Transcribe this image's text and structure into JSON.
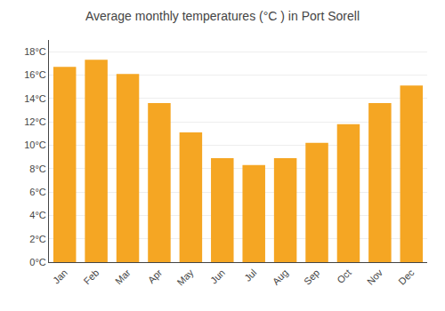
{
  "chart_data": {
    "type": "bar",
    "title": "Average monthly temperatures (°C ) in Port Sorell",
    "categories": [
      "Jan",
      "Feb",
      "Mar",
      "Apr",
      "May",
      "Jun",
      "Jul",
      "Aug",
      "Sep",
      "Oct",
      "Nov",
      "Dec"
    ],
    "values": [
      16.7,
      17.3,
      16.1,
      13.6,
      11.1,
      8.9,
      8.3,
      8.9,
      10.2,
      11.8,
      13.6,
      15.1
    ],
    "color": "#F5A623",
    "ylim": [
      0,
      19
    ],
    "yticks": [
      {
        "value": 0,
        "label": "0°C"
      },
      {
        "value": 2,
        "label": "2°C"
      },
      {
        "value": 4,
        "label": "4°C"
      },
      {
        "value": 6,
        "label": "6°C"
      },
      {
        "value": 8,
        "label": "8°C"
      },
      {
        "value": 10,
        "label": "10°C"
      },
      {
        "value": 12,
        "label": "12°C"
      },
      {
        "value": 14,
        "label": "14°C"
      },
      {
        "value": 16,
        "label": "16°C"
      },
      {
        "value": 18,
        "label": "18°C"
      }
    ],
    "grid": true
  }
}
